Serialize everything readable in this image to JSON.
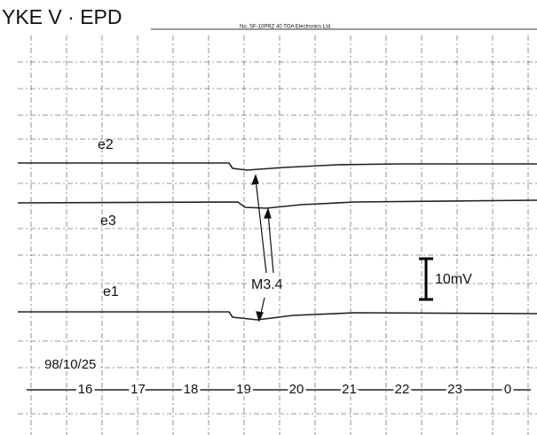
{
  "header": {
    "title": "YKE V · EPD",
    "paper_mark": "No. SF-10PRZ 40   TOA Electronics Ltd."
  },
  "traces": [
    {
      "label": "e2"
    },
    {
      "label": "e3"
    },
    {
      "label": "e1"
    }
  ],
  "annotation": "M3.4",
  "scale_label": "10mV",
  "date": "98/10/25",
  "hours": [
    "16",
    "17",
    "18",
    "19",
    "20",
    "21",
    "22",
    "23",
    "0"
  ]
}
